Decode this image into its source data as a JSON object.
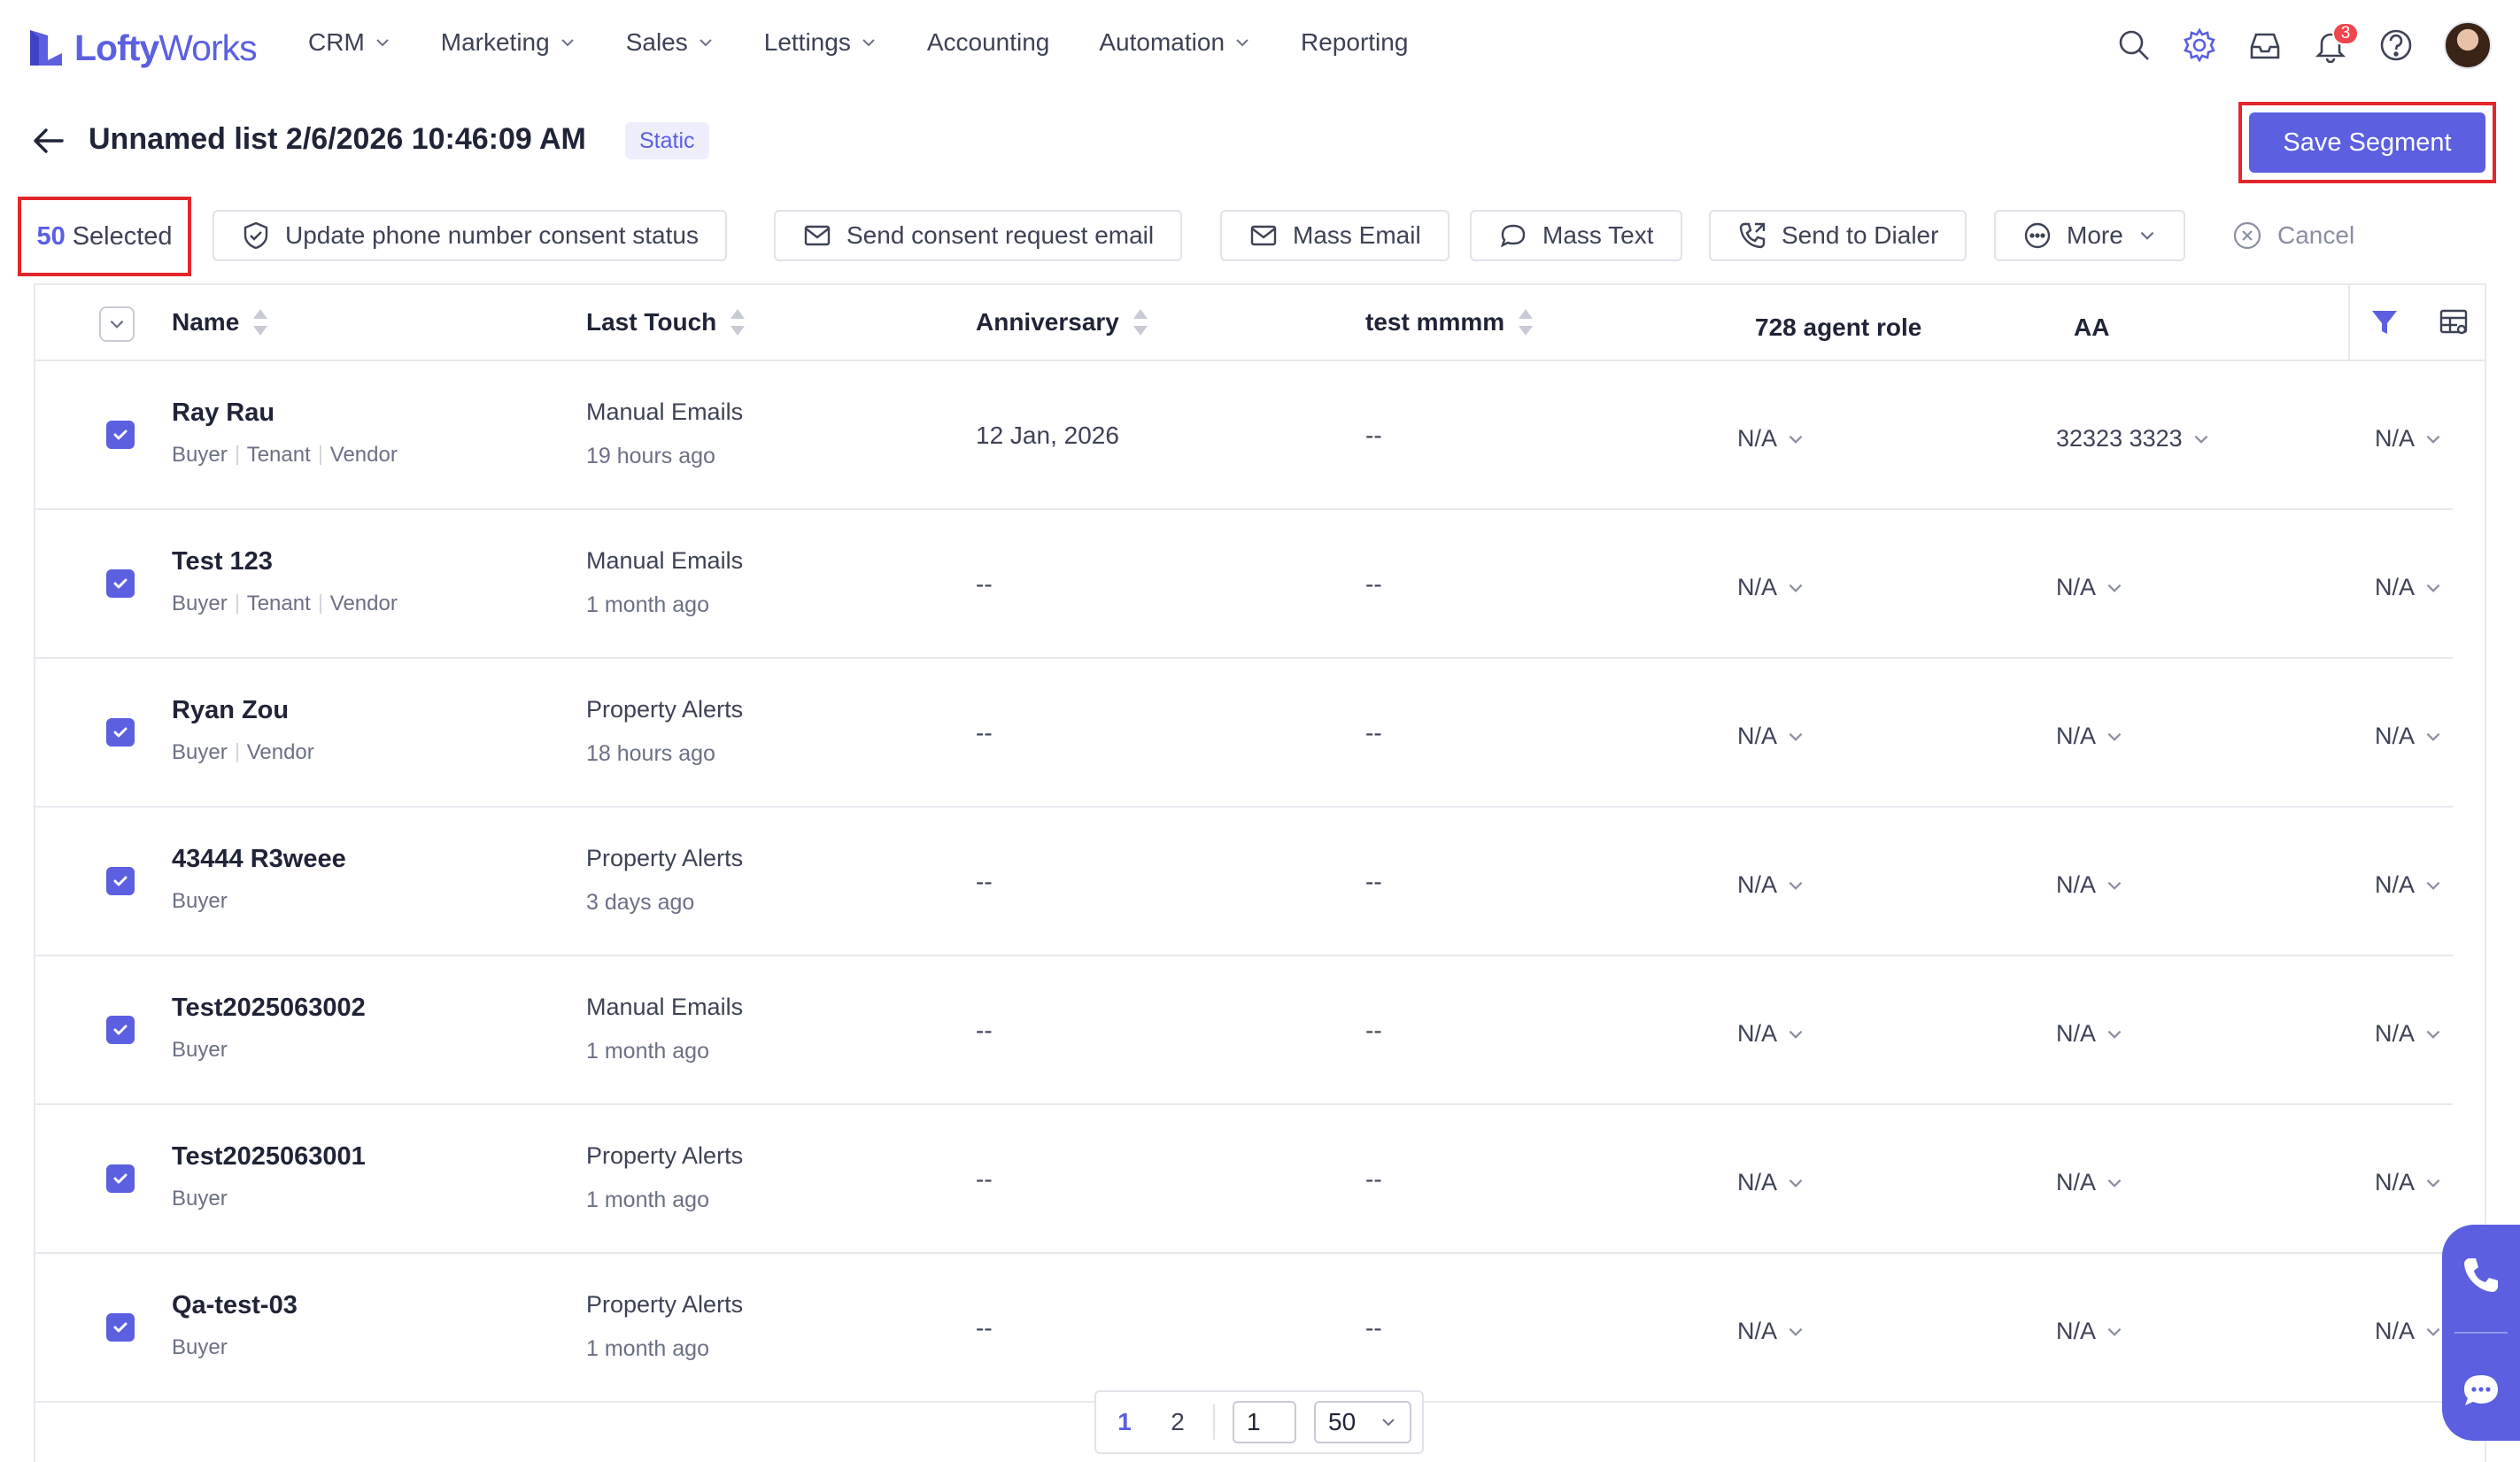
{
  "app": {
    "logo_text_a": "Lofty",
    "logo_text_b": "Works",
    "accent_color": "#5b5fe0"
  },
  "nav": {
    "items": [
      {
        "label": "CRM",
        "has_dropdown": true
      },
      {
        "label": "Marketing",
        "has_dropdown": true
      },
      {
        "label": "Sales",
        "has_dropdown": true
      },
      {
        "label": "Lettings",
        "has_dropdown": true
      },
      {
        "label": "Accounting",
        "has_dropdown": false
      },
      {
        "label": "Automation",
        "has_dropdown": true
      },
      {
        "label": "Reporting",
        "has_dropdown": false
      }
    ],
    "icons": [
      "search-icon",
      "gear-icon",
      "inbox-icon",
      "bell-icon",
      "help-icon"
    ],
    "notification_count": "3"
  },
  "page": {
    "title": "Unnamed list 2/6/2026 10:46:09 AM",
    "badge": "Static",
    "save_label": "Save Segment"
  },
  "actions": {
    "selected_count": "50",
    "selected_label": "Selected",
    "buttons": [
      {
        "label": "Update phone number consent status",
        "icon": "shield-check-icon"
      },
      {
        "label": "Send consent request email",
        "icon": "mail-icon"
      },
      {
        "label": "Mass Email",
        "icon": "mail-icon"
      },
      {
        "label": "Mass Text",
        "icon": "chat-bubble-icon"
      },
      {
        "label": "Send to Dialer",
        "icon": "phone-dial-icon"
      },
      {
        "label": "More",
        "icon": "more-dots-icon"
      }
    ],
    "cancel_label": "Cancel"
  },
  "table": {
    "columns": [
      "Name",
      "Last Touch",
      "Anniversary",
      "test mmmm",
      "728 agent role",
      "AA"
    ],
    "rows": [
      {
        "name": "Ray Rau",
        "tags": [
          "Buyer",
          "Tenant",
          "Vendor"
        ],
        "touch": "Manual Emails",
        "touch_time": "19 hours ago",
        "anniversary": "12 Jan, 2026",
        "test": "--",
        "role": "N/A",
        "aa": "32323 3323",
        "extra": "N/A"
      },
      {
        "name": "Test 123",
        "tags": [
          "Buyer",
          "Tenant",
          "Vendor"
        ],
        "touch": "Manual Emails",
        "touch_time": "1 month ago",
        "anniversary": "--",
        "test": "--",
        "role": "N/A",
        "aa": "N/A",
        "extra": "N/A"
      },
      {
        "name": "Ryan Zou",
        "tags": [
          "Buyer",
          "Vendor"
        ],
        "touch": "Property Alerts",
        "touch_time": "18 hours ago",
        "anniversary": "--",
        "test": "--",
        "role": "N/A",
        "aa": "N/A",
        "extra": "N/A"
      },
      {
        "name": "43444 R3weee",
        "tags": [
          "Buyer"
        ],
        "touch": "Property Alerts",
        "touch_time": "3 days ago",
        "anniversary": "--",
        "test": "--",
        "role": "N/A",
        "aa": "N/A",
        "extra": "N/A"
      },
      {
        "name": "Test2025063002",
        "tags": [
          "Buyer"
        ],
        "touch": "Manual Emails",
        "touch_time": "1 month ago",
        "anniversary": "--",
        "test": "--",
        "role": "N/A",
        "aa": "N/A",
        "extra": "N/A"
      },
      {
        "name": "Test2025063001",
        "tags": [
          "Buyer"
        ],
        "touch": "Property Alerts",
        "touch_time": "1 month ago",
        "anniversary": "--",
        "test": "--",
        "role": "N/A",
        "aa": "N/A",
        "extra": "N/A"
      },
      {
        "name": "Qa-test-03",
        "tags": [
          "Buyer"
        ],
        "touch": "Property Alerts",
        "touch_time": "1 month ago",
        "anniversary": "--",
        "test": "--",
        "role": "N/A",
        "aa": "N/A",
        "extra": "N/A"
      }
    ]
  },
  "pagination": {
    "pages": [
      "1",
      "2"
    ],
    "current_page": "1",
    "page_input": "1",
    "page_size": "50"
  }
}
